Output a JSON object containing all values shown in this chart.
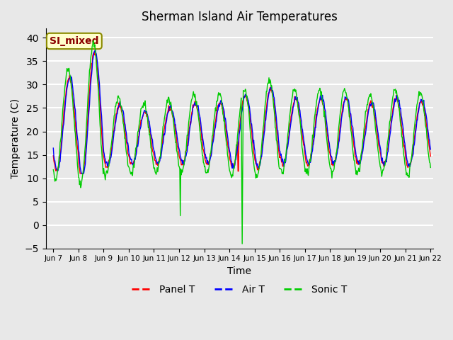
{
  "title": "Sherman Island Air Temperatures",
  "xlabel": "Time",
  "ylabel": "Temperature (C)",
  "ylim": [
    -5,
    42
  ],
  "yticks": [
    -5,
    0,
    5,
    10,
    15,
    20,
    25,
    30,
    35,
    40
  ],
  "background_color": "#e8e8e8",
  "plot_bg_color": "#e8e8e8",
  "grid_color": "white",
  "annotation_text": "SI_mixed",
  "annotation_color": "#8b0000",
  "annotation_bg": "#ffffcc",
  "line_colors": {
    "panel": "#ff0000",
    "air": "#0000ff",
    "sonic": "#00cc00"
  },
  "legend_labels": [
    "Panel T",
    "Air T",
    "Sonic T"
  ],
  "x_tick_labels": [
    "Jun 7",
    "Jun 8",
    "Jun 9",
    "Jun 10",
    "Jun 11",
    "Jun 12",
    "Jun 13",
    "Jun 14",
    "Jun 15",
    "Jun 16",
    "Jun 17",
    "Jun 18",
    "Jun 19",
    "Jun 20",
    "Jun 21",
    "Jun 22"
  ],
  "n_days": 15,
  "figsize": [
    6.4,
    4.8
  ],
  "dpi": 100
}
